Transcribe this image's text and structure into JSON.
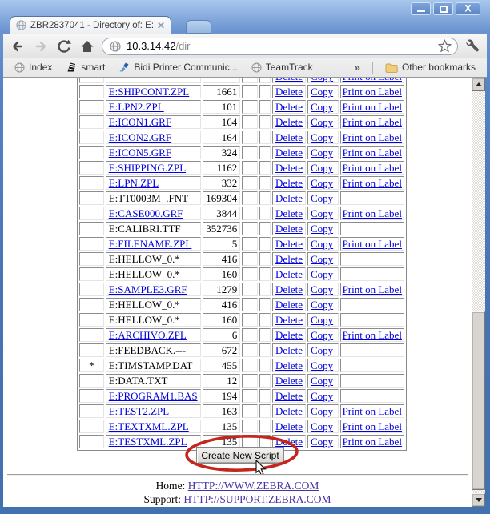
{
  "tab": {
    "title": "ZBR2837041 - Directory of: E:"
  },
  "address_bar": {
    "host": "10.3.14.42",
    "path": "/dir"
  },
  "bookmarks": {
    "items": [
      {
        "label": "Index"
      },
      {
        "label": "smart"
      },
      {
        "label": "Bidi Printer Communic..."
      },
      {
        "label": "TeamTrack"
      }
    ],
    "overflow_chevron": "»",
    "other_bookmarks": "Other bookmarks"
  },
  "table": {
    "action_labels": {
      "delete": "Delete",
      "copy": "Copy",
      "print": "Print on Label"
    },
    "rows": [
      {
        "star": "",
        "name": "",
        "link": false,
        "size": "",
        "print": true
      },
      {
        "star": "",
        "name": "E:SHIPCONT.ZPL",
        "link": true,
        "size": "1661",
        "print": true
      },
      {
        "star": "",
        "name": "E:LPN2.ZPL",
        "link": true,
        "size": "101",
        "print": true
      },
      {
        "star": "",
        "name": "E:ICON1.GRF",
        "link": true,
        "size": "164",
        "print": true
      },
      {
        "star": "",
        "name": "E:ICON2.GRF",
        "link": true,
        "size": "164",
        "print": true
      },
      {
        "star": "",
        "name": "E:ICON5.GRF",
        "link": true,
        "size": "324",
        "print": true
      },
      {
        "star": "",
        "name": "E:SHIPPING.ZPL",
        "link": true,
        "size": "1162",
        "print": true
      },
      {
        "star": "",
        "name": "E:LPN.ZPL",
        "link": true,
        "size": "332",
        "print": true
      },
      {
        "star": "",
        "name": "E:TT0003M_.FNT",
        "link": false,
        "size": "169304",
        "print": false
      },
      {
        "star": "",
        "name": "E:CASE000.GRF",
        "link": true,
        "size": "3844",
        "print": true
      },
      {
        "star": "",
        "name": "E:CALIBRI.TTF",
        "link": false,
        "size": "352736",
        "print": false
      },
      {
        "star": "",
        "name": "E:FILENAME.ZPL",
        "link": true,
        "size": "5",
        "print": true
      },
      {
        "star": "",
        "name": "E:HELLOW_0.*",
        "link": false,
        "size": "416",
        "print": false
      },
      {
        "star": "",
        "name": "E:HELLOW_0.*",
        "link": false,
        "size": "160",
        "print": false
      },
      {
        "star": "",
        "name": "E:SAMPLE3.GRF",
        "link": true,
        "size": "1279",
        "print": true
      },
      {
        "star": "",
        "name": "E:HELLOW_0.*",
        "link": false,
        "size": "416",
        "print": false
      },
      {
        "star": "",
        "name": "E:HELLOW_0.*",
        "link": false,
        "size": "160",
        "print": false
      },
      {
        "star": "",
        "name": "E:ARCHIVO.ZPL",
        "link": true,
        "size": "6",
        "print": true
      },
      {
        "star": "",
        "name": "E:FEEDBACK.---",
        "link": false,
        "size": "672",
        "print": false
      },
      {
        "star": "*",
        "name": "E:TIMSTAMP.DAT",
        "link": false,
        "size": "455",
        "print": false
      },
      {
        "star": "",
        "name": "E:DATA.TXT",
        "link": false,
        "size": "12",
        "print": false
      },
      {
        "star": "",
        "name": "E:PROGRAM1.BAS",
        "link": true,
        "size": "194",
        "print": false
      },
      {
        "star": "",
        "name": "E:TEST2.ZPL",
        "link": true,
        "size": "163",
        "print": true
      },
      {
        "star": "",
        "name": "E:TEXTXML.ZPL",
        "link": true,
        "size": "135",
        "print": true
      },
      {
        "star": "",
        "name": "E:TESTXML.ZPL",
        "link": true,
        "size": "135",
        "print": true
      }
    ]
  },
  "create_button": {
    "label": "Create New Script"
  },
  "footer": {
    "home_label": "Home:",
    "home_url": "HTTP://WWW.ZEBRA.COM",
    "support_label": "Support:",
    "support_url": "HTTP://SUPPORT.ZEBRA.COM"
  },
  "colors": {
    "link": "#0000dd",
    "footer_link": "#4533a5",
    "annotation": "#c3261c"
  }
}
